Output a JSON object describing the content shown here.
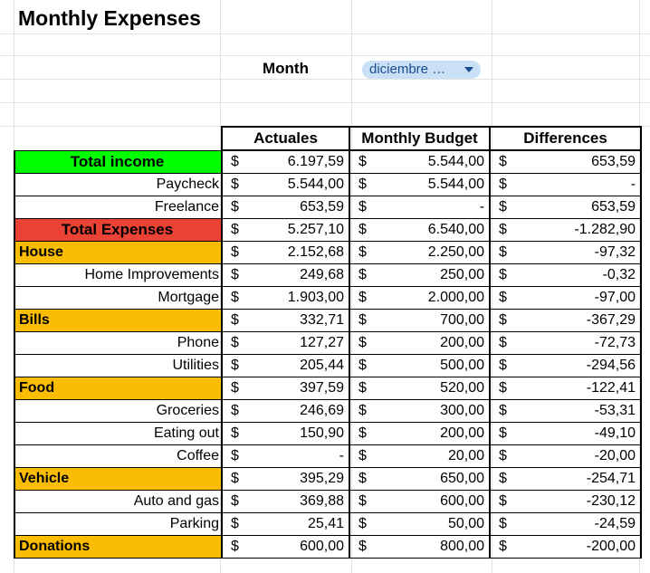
{
  "sheet": {
    "title": "Monthly Expenses",
    "month_label": "Month",
    "month_value": "diciembre …"
  },
  "table": {
    "headers": [
      "Actuales",
      "Monthly Budget",
      "Differences"
    ],
    "currency": "$",
    "rows": [
      {
        "label": "Total income",
        "style": "total-income",
        "actual": "6.197,59",
        "budget": "5.544,00",
        "diff": "653,59"
      },
      {
        "label": "Paycheck",
        "style": "sub",
        "actual": "5.544,00",
        "budget": "5.544,00",
        "diff": "-"
      },
      {
        "label": "Freelance",
        "style": "sub",
        "actual": "653,59",
        "budget": "-",
        "diff": "653,59"
      },
      {
        "label": "Total Expenses",
        "style": "total-exp",
        "actual": "5.257,10",
        "budget": "6.540,00",
        "diff": "-1.282,90"
      },
      {
        "label": "House",
        "style": "cat",
        "actual": "2.152,68",
        "budget": "2.250,00",
        "diff": "-97,32"
      },
      {
        "label": "Home Improvements",
        "style": "sub",
        "actual": "249,68",
        "budget": "250,00",
        "diff": "-0,32"
      },
      {
        "label": "Mortgage",
        "style": "sub",
        "actual": "1.903,00",
        "budget": "2.000,00",
        "diff": "-97,00"
      },
      {
        "label": "Bills",
        "style": "cat",
        "actual": "332,71",
        "budget": "700,00",
        "diff": "-367,29"
      },
      {
        "label": "Phone",
        "style": "sub",
        "actual": "127,27",
        "budget": "200,00",
        "diff": "-72,73"
      },
      {
        "label": "Utilities",
        "style": "sub",
        "actual": "205,44",
        "budget": "500,00",
        "diff": "-294,56"
      },
      {
        "label": "Food",
        "style": "cat",
        "actual": "397,59",
        "budget": "520,00",
        "diff": "-122,41"
      },
      {
        "label": "Groceries",
        "style": "sub",
        "actual": "246,69",
        "budget": "300,00",
        "diff": "-53,31"
      },
      {
        "label": "Eating out",
        "style": "sub",
        "actual": "150,90",
        "budget": "200,00",
        "diff": "-49,10"
      },
      {
        "label": "Coffee",
        "style": "sub",
        "actual": "-",
        "budget": "20,00",
        "diff": "-20,00"
      },
      {
        "label": "Vehicle",
        "style": "cat",
        "actual": "395,29",
        "budget": "650,00",
        "diff": "-254,71"
      },
      {
        "label": "Auto and gas",
        "style": "sub",
        "actual": "369,88",
        "budget": "600,00",
        "diff": "-230,12"
      },
      {
        "label": "Parking",
        "style": "sub",
        "actual": "25,41",
        "budget": "50,00",
        "diff": "-24,59"
      },
      {
        "label": "Donations",
        "style": "cat",
        "actual": "600,00",
        "budget": "800,00",
        "diff": "-200,00"
      }
    ]
  },
  "colors": {
    "total_income": "#00ff00",
    "total_expenses": "#ea4335",
    "category": "#fbbc04",
    "month_chip": "#c9e0f7"
  }
}
